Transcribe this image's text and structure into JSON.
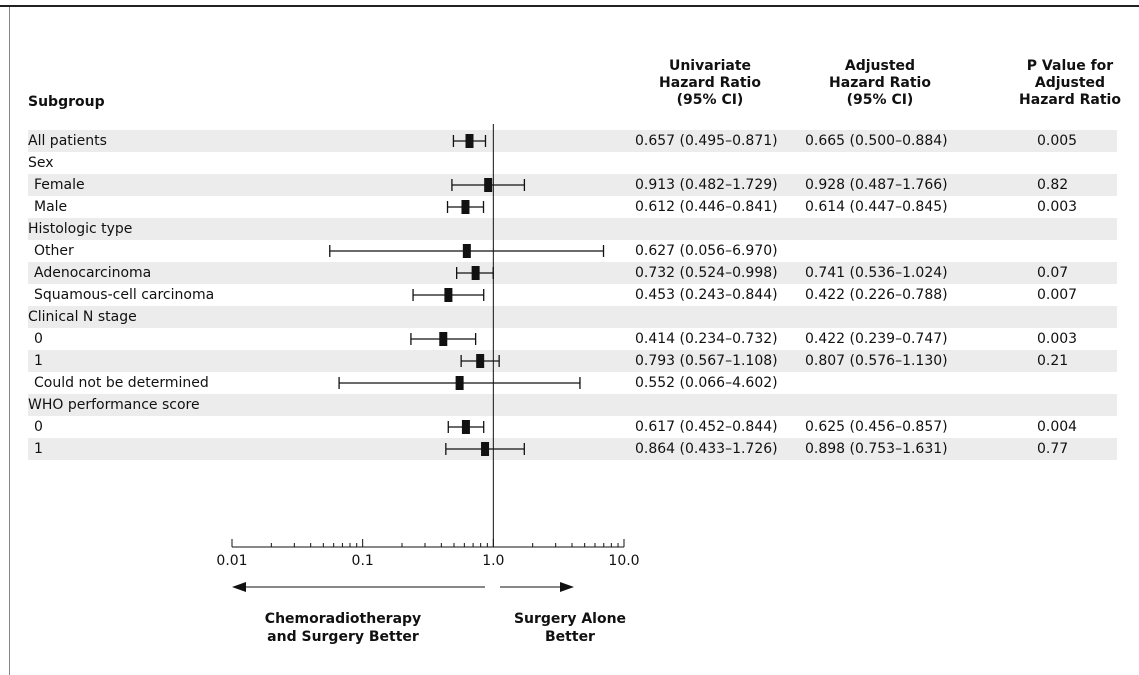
{
  "header": {
    "subgroup": "Subgroup",
    "univariate": [
      "Univariate",
      "Hazard Ratio",
      "(95% CI)"
    ],
    "adjusted": [
      "Adjusted",
      "Hazard Ratio",
      "(95% CI)"
    ],
    "pvalue": [
      "P Value for",
      "Adjusted",
      "Hazard Ratio"
    ]
  },
  "rows": [
    {
      "label": "All patients",
      "indent": 0,
      "shaded": true,
      "univariate": "0.657 (0.495–0.871)",
      "adjusted": "0.665 (0.500–0.884)",
      "p": "0.005"
    },
    {
      "label": "Sex",
      "indent": 0,
      "shaded": false,
      "univariate": "",
      "adjusted": "",
      "p": ""
    },
    {
      "label": "Female",
      "indent": 1,
      "shaded": true,
      "univariate": "0.913 (0.482–1.729)",
      "adjusted": "0.928 (0.487–1.766)",
      "p": "0.82"
    },
    {
      "label": "Male",
      "indent": 1,
      "shaded": false,
      "univariate": "0.612 (0.446–0.841)",
      "adjusted": "0.614 (0.447–0.845)",
      "p": "0.003"
    },
    {
      "label": "Histologic type",
      "indent": 0,
      "shaded": true,
      "univariate": "",
      "adjusted": "",
      "p": ""
    },
    {
      "label": "Other",
      "indent": 1,
      "shaded": false,
      "univariate": "0.627 (0.056–6.970)",
      "adjusted": "",
      "p": ""
    },
    {
      "label": "Adenocarcinoma",
      "indent": 1,
      "shaded": true,
      "univariate": "0.732 (0.524–0.998)",
      "adjusted": "0.741 (0.536–1.024)",
      "p": "0.07"
    },
    {
      "label": "Squamous-cell carcinoma",
      "indent": 1,
      "shaded": false,
      "univariate": "0.453 (0.243–0.844)",
      "adjusted": "0.422 (0.226–0.788)",
      "p": "0.007"
    },
    {
      "label": "Clinical N stage",
      "indent": 0,
      "shaded": true,
      "univariate": "",
      "adjusted": "",
      "p": ""
    },
    {
      "label": "0",
      "indent": 1,
      "shaded": false,
      "univariate": "0.414 (0.234–0.732)",
      "adjusted": "0.422 (0.239–0.747)",
      "p": "0.003"
    },
    {
      "label": "1",
      "indent": 1,
      "shaded": true,
      "univariate": "0.793 (0.567–1.108)",
      "adjusted": "0.807 (0.576–1.130)",
      "p": "0.21"
    },
    {
      "label": "Could not be determined",
      "indent": 1,
      "shaded": false,
      "univariate": "0.552 (0.066–4.602)",
      "adjusted": "",
      "p": ""
    },
    {
      "label": "WHO performance score",
      "indent": 0,
      "shaded": true,
      "univariate": "",
      "adjusted": "",
      "p": ""
    },
    {
      "label": "0",
      "indent": 1,
      "shaded": false,
      "univariate": "0.617 (0.452–0.844)",
      "adjusted": "0.625 (0.456–0.857)",
      "p": "0.004"
    },
    {
      "label": "1",
      "indent": 1,
      "shaded": true,
      "univariate": "0.864 (0.433–1.726)",
      "adjusted": "0.898 (0.753–1.631)",
      "p": "0.77"
    }
  ],
  "chart_data": {
    "type": "scatter",
    "x_scale": "log",
    "xlim": [
      0.01,
      10.0
    ],
    "ticks": [
      0.01,
      0.1,
      1.0,
      10.0
    ],
    "tick_labels": [
      "0.01",
      "0.1",
      "1.0",
      "10.0"
    ],
    "reference_line": 1.0,
    "rows": [
      {
        "hr": 0.657,
        "lo": 0.495,
        "hi": 0.871
      },
      null,
      {
        "hr": 0.913,
        "lo": 0.482,
        "hi": 1.729
      },
      {
        "hr": 0.612,
        "lo": 0.446,
        "hi": 0.841
      },
      null,
      {
        "hr": 0.627,
        "lo": 0.056,
        "hi": 6.97
      },
      {
        "hr": 0.732,
        "lo": 0.524,
        "hi": 0.998
      },
      {
        "hr": 0.453,
        "lo": 0.243,
        "hi": 0.844
      },
      null,
      {
        "hr": 0.414,
        "lo": 0.234,
        "hi": 0.732
      },
      {
        "hr": 0.793,
        "lo": 0.567,
        "hi": 1.108
      },
      {
        "hr": 0.552,
        "lo": 0.066,
        "hi": 4.602
      },
      null,
      {
        "hr": 0.617,
        "lo": 0.452,
        "hi": 0.844
      },
      {
        "hr": 0.864,
        "lo": 0.433,
        "hi": 1.726
      }
    ],
    "left_caption": [
      "Chemoradiotherapy",
      "and Surgery Better"
    ],
    "right_caption": [
      "Surgery Alone",
      "Better"
    ]
  }
}
